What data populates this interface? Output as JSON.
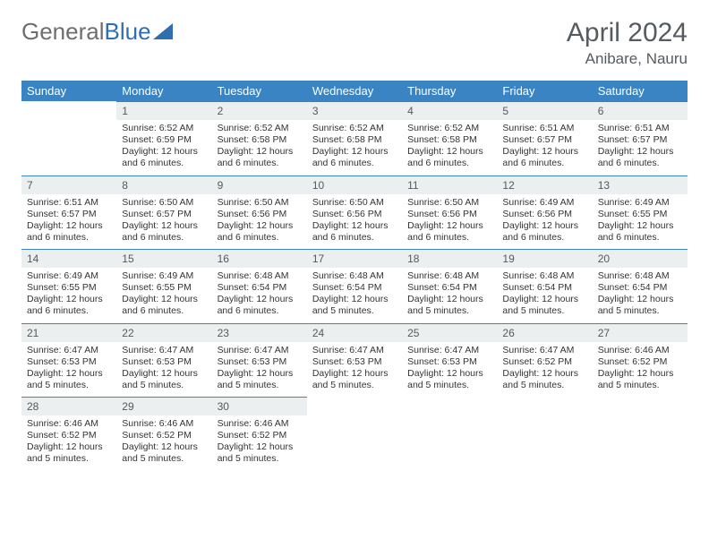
{
  "logo": {
    "part1": "General",
    "part2": "Blue"
  },
  "title": "April 2024",
  "subtitle": "Anibare, Nauru",
  "header_bg": "#3b84c4",
  "header_fg": "#ffffff",
  "daynum_bg": "#eceff0",
  "daynum_border": "#3b84c4",
  "text_color": "#343434",
  "title_color": "#555b60",
  "weekdays": [
    "Sunday",
    "Monday",
    "Tuesday",
    "Wednesday",
    "Thursday",
    "Friday",
    "Saturday"
  ],
  "weeks": [
    [
      {
        "n": "",
        "lines": []
      },
      {
        "n": "1",
        "lines": [
          "Sunrise: 6:52 AM",
          "Sunset: 6:59 PM",
          "Daylight: 12 hours and 6 minutes."
        ]
      },
      {
        "n": "2",
        "lines": [
          "Sunrise: 6:52 AM",
          "Sunset: 6:58 PM",
          "Daylight: 12 hours and 6 minutes."
        ]
      },
      {
        "n": "3",
        "lines": [
          "Sunrise: 6:52 AM",
          "Sunset: 6:58 PM",
          "Daylight: 12 hours and 6 minutes."
        ]
      },
      {
        "n": "4",
        "lines": [
          "Sunrise: 6:52 AM",
          "Sunset: 6:58 PM",
          "Daylight: 12 hours and 6 minutes."
        ]
      },
      {
        "n": "5",
        "lines": [
          "Sunrise: 6:51 AM",
          "Sunset: 6:57 PM",
          "Daylight: 12 hours and 6 minutes."
        ]
      },
      {
        "n": "6",
        "lines": [
          "Sunrise: 6:51 AM",
          "Sunset: 6:57 PM",
          "Daylight: 12 hours and 6 minutes."
        ]
      }
    ],
    [
      {
        "n": "7",
        "lines": [
          "Sunrise: 6:51 AM",
          "Sunset: 6:57 PM",
          "Daylight: 12 hours and 6 minutes."
        ]
      },
      {
        "n": "8",
        "lines": [
          "Sunrise: 6:50 AM",
          "Sunset: 6:57 PM",
          "Daylight: 12 hours and 6 minutes."
        ]
      },
      {
        "n": "9",
        "lines": [
          "Sunrise: 6:50 AM",
          "Sunset: 6:56 PM",
          "Daylight: 12 hours and 6 minutes."
        ]
      },
      {
        "n": "10",
        "lines": [
          "Sunrise: 6:50 AM",
          "Sunset: 6:56 PM",
          "Daylight: 12 hours and 6 minutes."
        ]
      },
      {
        "n": "11",
        "lines": [
          "Sunrise: 6:50 AM",
          "Sunset: 6:56 PM",
          "Daylight: 12 hours and 6 minutes."
        ]
      },
      {
        "n": "12",
        "lines": [
          "Sunrise: 6:49 AM",
          "Sunset: 6:56 PM",
          "Daylight: 12 hours and 6 minutes."
        ]
      },
      {
        "n": "13",
        "lines": [
          "Sunrise: 6:49 AM",
          "Sunset: 6:55 PM",
          "Daylight: 12 hours and 6 minutes."
        ]
      }
    ],
    [
      {
        "n": "14",
        "lines": [
          "Sunrise: 6:49 AM",
          "Sunset: 6:55 PM",
          "Daylight: 12 hours and 6 minutes."
        ]
      },
      {
        "n": "15",
        "lines": [
          "Sunrise: 6:49 AM",
          "Sunset: 6:55 PM",
          "Daylight: 12 hours and 6 minutes."
        ]
      },
      {
        "n": "16",
        "lines": [
          "Sunrise: 6:48 AM",
          "Sunset: 6:54 PM",
          "Daylight: 12 hours and 6 minutes."
        ]
      },
      {
        "n": "17",
        "lines": [
          "Sunrise: 6:48 AM",
          "Sunset: 6:54 PM",
          "Daylight: 12 hours and 5 minutes."
        ]
      },
      {
        "n": "18",
        "lines": [
          "Sunrise: 6:48 AM",
          "Sunset: 6:54 PM",
          "Daylight: 12 hours and 5 minutes."
        ]
      },
      {
        "n": "19",
        "lines": [
          "Sunrise: 6:48 AM",
          "Sunset: 6:54 PM",
          "Daylight: 12 hours and 5 minutes."
        ]
      },
      {
        "n": "20",
        "lines": [
          "Sunrise: 6:48 AM",
          "Sunset: 6:54 PM",
          "Daylight: 12 hours and 5 minutes."
        ]
      }
    ],
    [
      {
        "n": "21",
        "lines": [
          "Sunrise: 6:47 AM",
          "Sunset: 6:53 PM",
          "Daylight: 12 hours and 5 minutes."
        ]
      },
      {
        "n": "22",
        "lines": [
          "Sunrise: 6:47 AM",
          "Sunset: 6:53 PM",
          "Daylight: 12 hours and 5 minutes."
        ]
      },
      {
        "n": "23",
        "lines": [
          "Sunrise: 6:47 AM",
          "Sunset: 6:53 PM",
          "Daylight: 12 hours and 5 minutes."
        ]
      },
      {
        "n": "24",
        "lines": [
          "Sunrise: 6:47 AM",
          "Sunset: 6:53 PM",
          "Daylight: 12 hours and 5 minutes."
        ]
      },
      {
        "n": "25",
        "lines": [
          "Sunrise: 6:47 AM",
          "Sunset: 6:53 PM",
          "Daylight: 12 hours and 5 minutes."
        ]
      },
      {
        "n": "26",
        "lines": [
          "Sunrise: 6:47 AM",
          "Sunset: 6:52 PM",
          "Daylight: 12 hours and 5 minutes."
        ]
      },
      {
        "n": "27",
        "lines": [
          "Sunrise: 6:46 AM",
          "Sunset: 6:52 PM",
          "Daylight: 12 hours and 5 minutes."
        ]
      }
    ],
    [
      {
        "n": "28",
        "lines": [
          "Sunrise: 6:46 AM",
          "Sunset: 6:52 PM",
          "Daylight: 12 hours and 5 minutes."
        ]
      },
      {
        "n": "29",
        "lines": [
          "Sunrise: 6:46 AM",
          "Sunset: 6:52 PM",
          "Daylight: 12 hours and 5 minutes."
        ]
      },
      {
        "n": "30",
        "lines": [
          "Sunrise: 6:46 AM",
          "Sunset: 6:52 PM",
          "Daylight: 12 hours and 5 minutes."
        ]
      },
      {
        "n": "",
        "lines": []
      },
      {
        "n": "",
        "lines": []
      },
      {
        "n": "",
        "lines": []
      },
      {
        "n": "",
        "lines": []
      }
    ]
  ]
}
